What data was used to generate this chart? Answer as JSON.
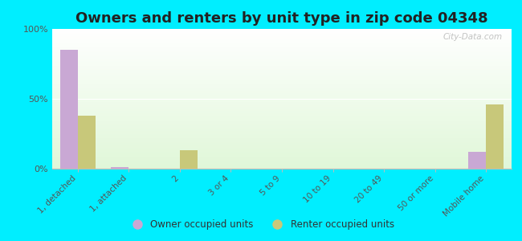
{
  "title": "Owners and renters by unit type in zip code 04348",
  "categories": [
    "1, detached",
    "1, attached",
    "2",
    "3 or 4",
    "5 to 9",
    "10 to 19",
    "20 to 49",
    "50 or more",
    "Mobile home"
  ],
  "owner_values": [
    85,
    1,
    0,
    0,
    0,
    0,
    0,
    0,
    12
  ],
  "renter_values": [
    38,
    0,
    13,
    0,
    0,
    0,
    0,
    0,
    46
  ],
  "owner_color": "#c9a8d4",
  "renter_color": "#c8c87a",
  "background_color": "#00eeff",
  "ylim": [
    0,
    100
  ],
  "yticks": [
    0,
    50,
    100
  ],
  "ytick_labels": [
    "0%",
    "50%",
    "100%"
  ],
  "bar_width": 0.35,
  "legend_owner": "Owner occupied units",
  "legend_renter": "Renter occupied units",
  "title_fontsize": 13,
  "watermark": "City-Data.com"
}
